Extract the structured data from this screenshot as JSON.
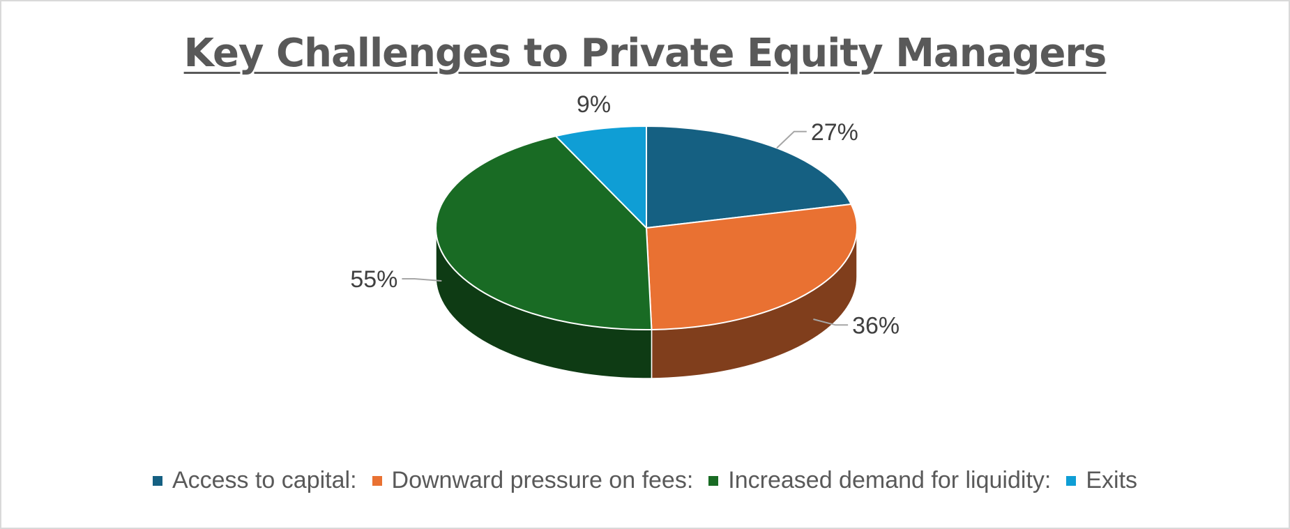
{
  "chart_data": {
    "type": "pie",
    "title": "Key Challenges to Private Equity Managers",
    "slices": [
      {
        "name": "Access to capital:",
        "label": "27%",
        "value": 27,
        "color": "#156082"
      },
      {
        "name": "Downward pressure on fees:",
        "label": "36%",
        "value": 36,
        "color": "#E97132"
      },
      {
        "name": "Increased demand for liquidity:",
        "label": "55%",
        "value": 55,
        "color": "#196B24"
      },
      {
        "name": "Exits",
        "label": "9%",
        "value": 9,
        "color": "#0F9ED5"
      }
    ],
    "legend_position": "bottom",
    "style": "3d"
  }
}
